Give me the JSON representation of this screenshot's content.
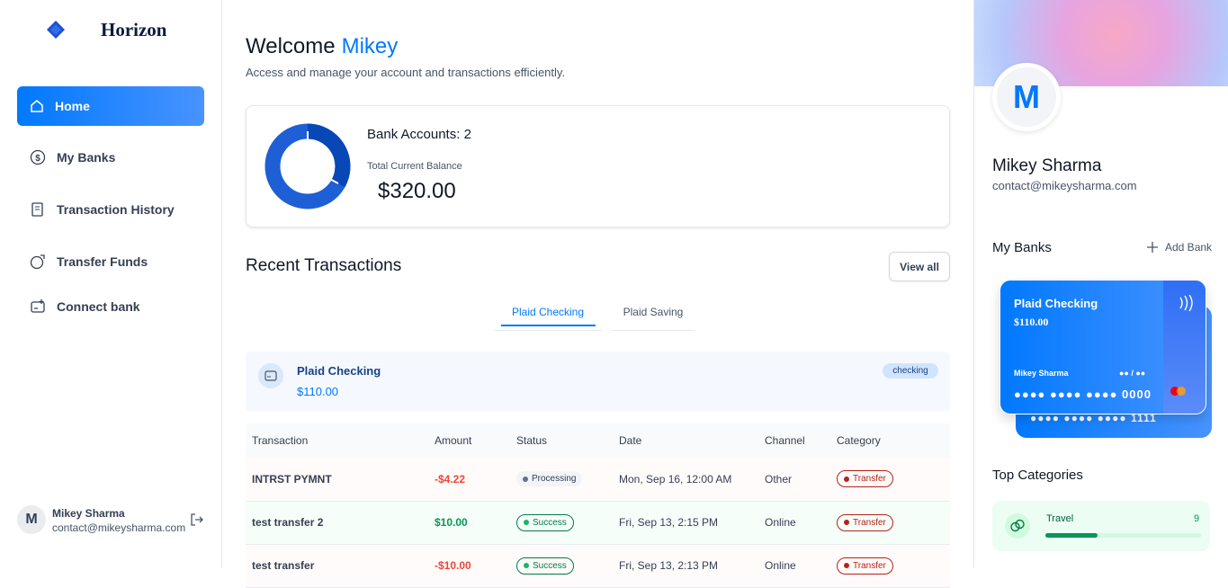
{
  "sidebar": {
    "brand": "Horizon",
    "nav": [
      "Home",
      "My Banks",
      "Transaction History",
      "Transfer Funds",
      "Connect bank"
    ],
    "user": {
      "initial": "M",
      "name": "Mikey Sharma",
      "email": "contact@mikeysharma.com"
    }
  },
  "header": {
    "greeting": "Welcome",
    "name": "Mikey",
    "subtitle": "Access and manage your account and transactions efficiently."
  },
  "balance": {
    "accounts_label": "Bank Accounts: 2",
    "total_label": "Total Current Balance",
    "total": "$320.00"
  },
  "recent": {
    "title": "Recent Transactions",
    "view_all": "View all",
    "tabs": [
      "Plaid Checking",
      "Plaid Saving"
    ],
    "bank": {
      "name": "Plaid Checking",
      "amount": "$110.00",
      "badge": "checking"
    },
    "table": {
      "headers": [
        "Transaction",
        "Amount",
        "Status",
        "Date",
        "Channel",
        "Category"
      ],
      "rows": [
        [
          "INTRST PYMNT",
          "-$4.22",
          "Processing",
          "Mon, Sep 16, 12:00 AM",
          "Other",
          "Transfer"
        ],
        [
          "test transfer 2",
          "$10.00",
          "Success",
          "Fri, Sep 13, 2:15 PM",
          "Online",
          "Transfer"
        ],
        [
          "test transfer",
          "-$10.00",
          "Success",
          "Fri, Sep 13, 2:13 PM",
          "Online",
          "Transfer"
        ]
      ]
    }
  },
  "profile": {
    "initial": "M",
    "name": "Mikey Sharma",
    "email": "contact@mikeysharma.com",
    "my_banks": "My Banks",
    "add_bank": "Add Bank",
    "card": {
      "bank": "Plaid Checking",
      "amount": "$110.00",
      "holder": "Mikey Sharma",
      "expiry": "●● / ●●",
      "number": "●●●● ●●●● ●●●● 0000"
    },
    "back_card_number": "●●●● ●●●● ●●●● 1111",
    "top_categories": "Top Categories",
    "categories": [
      {
        "name": "Travel",
        "count": 9
      }
    ]
  }
}
